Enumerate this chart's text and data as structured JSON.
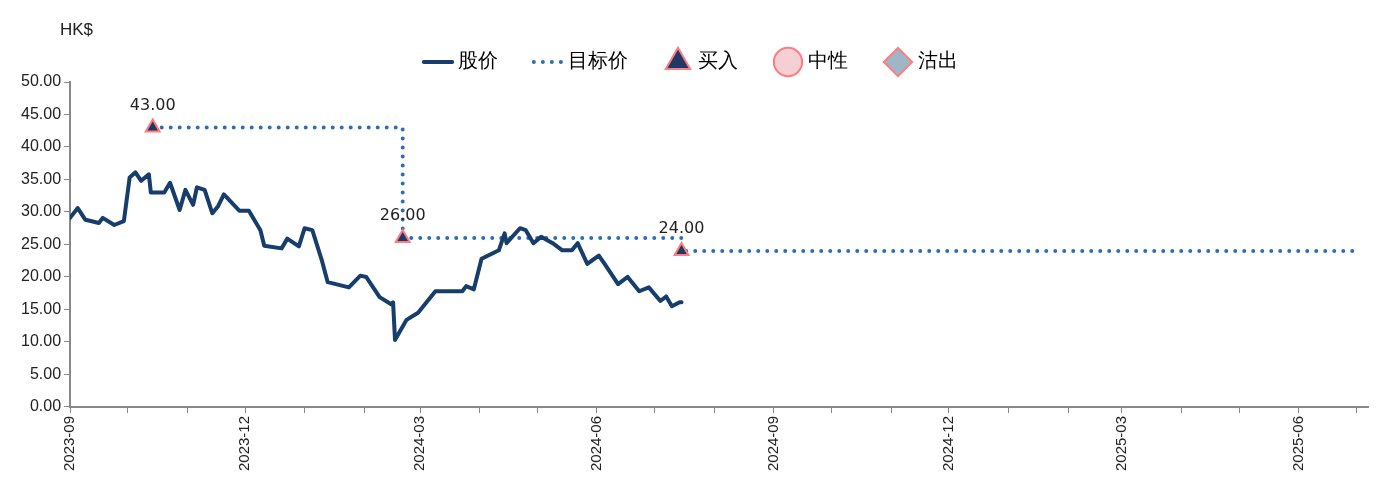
{
  "chart_data": {
    "type": "line",
    "ylabel": "HK$",
    "legend": "top",
    "grid": false,
    "xlim": [
      "2023-09-01",
      "2025-07-07"
    ],
    "xticks": [
      {
        "value": "2023-09",
        "label": "2023-09"
      },
      {
        "value": "2023-10",
        "label": null
      },
      {
        "value": "2023-11",
        "label": null
      },
      {
        "value": "2023-12",
        "label": "2023-12"
      },
      {
        "value": "2024-01",
        "label": null
      },
      {
        "value": "2024-02",
        "label": null
      },
      {
        "value": "2024-03",
        "label": "2024-03"
      },
      {
        "value": "2024-04",
        "label": null
      },
      {
        "value": "2024-05",
        "label": null
      },
      {
        "value": "2024-06",
        "label": "2024-06"
      },
      {
        "value": "2024-07",
        "label": null
      },
      {
        "value": "2024-08",
        "label": null
      },
      {
        "value": "2024-09",
        "label": "2024-09"
      },
      {
        "value": "2024-10",
        "label": null
      },
      {
        "value": "2024-11",
        "label": null
      },
      {
        "value": "2024-12",
        "label": "2024-12"
      },
      {
        "value": "2025-01",
        "label": null
      },
      {
        "value": "2025-02",
        "label": null
      },
      {
        "value": "2025-03",
        "label": "2025-03"
      },
      {
        "value": "2025-04",
        "label": null
      },
      {
        "value": "2025-05",
        "label": null
      },
      {
        "value": "2025-06",
        "label": "2025-06"
      },
      {
        "value": "2025-07",
        "label": null
      }
    ],
    "ylim": [
      0,
      50
    ],
    "yticks": [
      {
        "value": 0,
        "label": "0.00"
      },
      {
        "value": 5,
        "label": "5.00"
      },
      {
        "value": 10,
        "label": "10.00"
      },
      {
        "value": 15,
        "label": "15.00"
      },
      {
        "value": 20,
        "label": "20.00"
      },
      {
        "value": 25,
        "label": "25.00"
      },
      {
        "value": 30,
        "label": "30.00"
      },
      {
        "value": 35,
        "label": "35.00"
      },
      {
        "value": 40,
        "label": "40.00"
      },
      {
        "value": 45,
        "label": "45.00"
      },
      {
        "value": 50,
        "label": "50.00"
      }
    ],
    "series": [
      {
        "name": "股价",
        "type": "line",
        "color": "#173d6b",
        "line_style": "solid",
        "marker": "none",
        "x": [
          "2023-09-01",
          "2023-09-05",
          "2023-09-09",
          "2023-09-16",
          "2023-09-18",
          "2023-09-24",
          "2023-09-29",
          "2023-10-02",
          "2023-10-05",
          "2023-10-08",
          "2023-10-12",
          "2023-10-13",
          "2023-10-20",
          "2023-10-23",
          "2023-10-28",
          "2023-10-31",
          "2023-11-04",
          "2023-11-06",
          "2023-11-10",
          "2023-11-14",
          "2023-11-17",
          "2023-11-20",
          "2023-11-28",
          "2023-12-03",
          "2023-12-09",
          "2023-12-11",
          "2023-12-20",
          "2023-12-23",
          "2023-12-29",
          "2024-01-01",
          "2024-01-05",
          "2024-01-10",
          "2024-01-13",
          "2024-01-24",
          "2024-01-30",
          "2024-02-02",
          "2024-02-09",
          "2024-02-15",
          "2024-02-16",
          "2024-02-17",
          "2024-02-23",
          "2024-02-29",
          "2024-03-09",
          "2024-03-23",
          "2024-03-25",
          "2024-03-29",
          "2024-04-02",
          "2024-04-11",
          "2024-04-14",
          "2024-04-15",
          "2024-04-22",
          "2024-04-25",
          "2024-04-29",
          "2024-05-03",
          "2024-05-09",
          "2024-05-14",
          "2024-05-19",
          "2024-05-22",
          "2024-05-27",
          "2024-06-02",
          "2024-06-05",
          "2024-06-12",
          "2024-06-17",
          "2024-06-23",
          "2024-06-28",
          "2024-07-04",
          "2024-07-07",
          "2024-07-10",
          "2024-07-14",
          "2024-07-15"
        ],
        "values": [
          29.1,
          30.6,
          28.8,
          28.3,
          29.1,
          28.0,
          28.6,
          35.3,
          36.1,
          34.8,
          35.8,
          33.0,
          33.0,
          34.5,
          30.3,
          33.4,
          31.1,
          33.8,
          33.4,
          29.8,
          30.9,
          32.7,
          30.2,
          30.2,
          27.2,
          24.8,
          24.4,
          25.9,
          24.7,
          27.5,
          27.2,
          22.5,
          19.2,
          18.4,
          20.2,
          20.0,
          16.9,
          15.8,
          16.1,
          10.3,
          13.4,
          14.5,
          17.8,
          17.8,
          18.6,
          18.1,
          22.8,
          24.1,
          26.7,
          25.2,
          27.5,
          27.2,
          25.2,
          26.2,
          25.2,
          24.1,
          24.1,
          25.2,
          22.0,
          23.3,
          22.0,
          18.9,
          20.0,
          17.8,
          18.4,
          16.3,
          17.0,
          15.5,
          16.1,
          16.1
        ]
      },
      {
        "name": "目标价",
        "type": "step",
        "color": "#2e6db4",
        "line_style": "dotted",
        "marker": "none",
        "x": [
          "2023-10-14",
          "2024-02-21",
          "2024-07-15",
          "2025-07-01"
        ],
        "values": [
          43,
          26,
          24,
          24
        ]
      },
      {
        "name": "买入",
        "type": "scatter",
        "color": "#1f3864",
        "marker": "triangle",
        "x": [
          "2023-10-14",
          "2024-02-21",
          "2024-07-15"
        ],
        "values": [
          43,
          26,
          24
        ],
        "value_labels": [
          "43.00",
          "26.00",
          "24.00"
        ]
      },
      {
        "name": "中性",
        "type": "scatter",
        "color": "#f4d0d4",
        "marker": "circle"
      },
      {
        "name": "沽出",
        "type": "scatter",
        "color": "#9fb6c6",
        "marker": "diamond"
      }
    ]
  }
}
